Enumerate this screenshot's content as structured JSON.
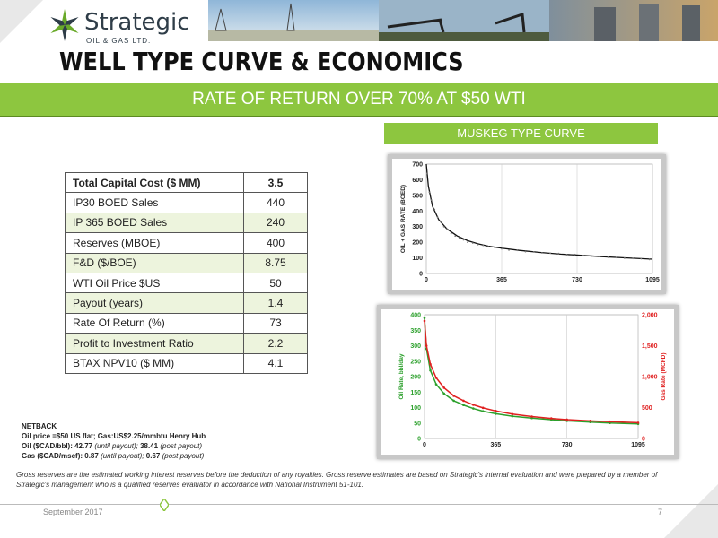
{
  "brand": {
    "name": "Strategic",
    "sub": "OIL & GAS LTD."
  },
  "title": "WELL TYPE CURVE & ECONOMICS",
  "headline": "RATE OF RETURN OVER 70% AT $50 WTI",
  "type_curve_label": "MUSKEG TYPE CURVE",
  "table": {
    "rows": [
      {
        "label": "Total Capital Cost ($ MM)",
        "value": "3.5"
      },
      {
        "label": "IP30 BOED Sales",
        "value": "440"
      },
      {
        "label": "IP 365 BOED Sales",
        "value": "240"
      },
      {
        "label": "Reserves (MBOE)",
        "value": "400"
      },
      {
        "label": "F&D ($/BOE)",
        "value": "8.75"
      },
      {
        "label": "WTI Oil Price $US",
        "value": "50"
      },
      {
        "label": "Payout (years)",
        "value": "1.4"
      },
      {
        "label": "Rate Of Return (%)",
        "value": "73"
      },
      {
        "label": "Profit to Investment Ratio",
        "value": "2.2"
      },
      {
        "label": "BTAX NPV10  ($ MM)",
        "value": "4.1"
      }
    ]
  },
  "netback": {
    "heading": "NETBACK",
    "line1": "Oil price =$50 US flat; Gas:US$2.25/mmbtu Henry Hub",
    "line2_prefix": "Oil ($CAD/bbl): ",
    "oil_until": "42.77",
    "until_label": "(until payout);",
    "oil_post": "38.41",
    "post_label": "(post payout)",
    "line3_prefix": "Gas ($CAD/mscf): ",
    "gas_until": "0.87",
    "gas_post": "0.67"
  },
  "disclaimer": "Gross reserves are the estimated working interest reserves before the deduction of any royalties.  Gross reserve estimates are based on Strategic's internal evaluation and were prepared by a member of Strategic's management who is a qualified reserves evaluator in accordance with National Instrument 51-101.",
  "footer": {
    "date": "September  2017",
    "page": "7"
  },
  "colors": {
    "accent_green": "#8dc63f",
    "oil_series": "#2ca02c",
    "gas_series": "#e02020"
  },
  "chart_data": [
    {
      "type": "scatter",
      "title": "",
      "xlabel": "",
      "ylabel": "OIL + GAS  RATE (BOED)",
      "x_ticks": [
        "0",
        "365",
        "730",
        "1095"
      ],
      "y_ticks": [
        "0",
        "100",
        "200",
        "300",
        "400",
        "500",
        "600",
        "700"
      ],
      "xlim": [
        0,
        1095
      ],
      "ylim": [
        0,
        700
      ],
      "grid": true,
      "series": [
        {
          "style": "line",
          "x": [
            0,
            10,
            30,
            60,
            100,
            150,
            200,
            250,
            300,
            365,
            450,
            550,
            650,
            730,
            850,
            950,
            1095
          ],
          "y": [
            700,
            560,
            430,
            345,
            285,
            240,
            210,
            190,
            175,
            162,
            148,
            135,
            124,
            118,
            108,
            101,
            92
          ]
        },
        {
          "style": "scatter",
          "x": [
            5,
            15,
            25,
            40,
            55,
            70,
            85,
            100,
            120,
            140,
            160,
            180,
            200,
            225,
            250,
            275,
            300,
            330,
            365,
            400,
            440,
            480,
            520,
            560,
            600,
            640,
            680,
            720,
            760,
            800,
            840,
            880,
            920,
            960,
            1000,
            1040,
            1080
          ],
          "y": [
            640,
            520,
            470,
            410,
            360,
            330,
            300,
            285,
            255,
            240,
            225,
            215,
            200,
            195,
            185,
            180,
            172,
            168,
            158,
            150,
            148,
            140,
            138,
            132,
            130,
            128,
            120,
            122,
            115,
            112,
            110,
            104,
            102,
            98,
            96,
            95,
            90
          ]
        }
      ]
    },
    {
      "type": "line",
      "title": "",
      "xlabel": "",
      "ylabel": "Oil Rate, bbl/day",
      "y2label": "Gas Rate (MCFD)",
      "x_ticks": [
        "0",
        "365",
        "730",
        "1095"
      ],
      "y_ticks": [
        "0",
        "50",
        "100",
        "150",
        "200",
        "250",
        "300",
        "350",
        "400"
      ],
      "y2_ticks": [
        "0",
        "500",
        "1,000",
        "1,500",
        "2,000"
      ],
      "xlim": [
        0,
        1095
      ],
      "ylim": [
        0,
        400
      ],
      "y2lim": [
        0,
        2000
      ],
      "grid": true,
      "series": [
        {
          "axis": "left",
          "x": [
            0,
            10,
            30,
            60,
            100,
            150,
            200,
            250,
            300,
            365,
            450,
            550,
            650,
            730,
            850,
            950,
            1095
          ],
          "y": [
            390,
            290,
            220,
            175,
            145,
            122,
            108,
            97,
            88,
            80,
            72,
            66,
            61,
            57,
            53,
            50,
            47
          ]
        },
        {
          "axis": "right",
          "x": [
            0,
            10,
            30,
            60,
            100,
            150,
            200,
            250,
            300,
            365,
            450,
            550,
            650,
            730,
            850,
            950,
            1095
          ],
          "y": [
            1900,
            1500,
            1200,
            980,
            820,
            690,
            610,
            545,
            495,
            445,
            395,
            355,
            325,
            305,
            285,
            272,
            255
          ]
        }
      ]
    }
  ]
}
